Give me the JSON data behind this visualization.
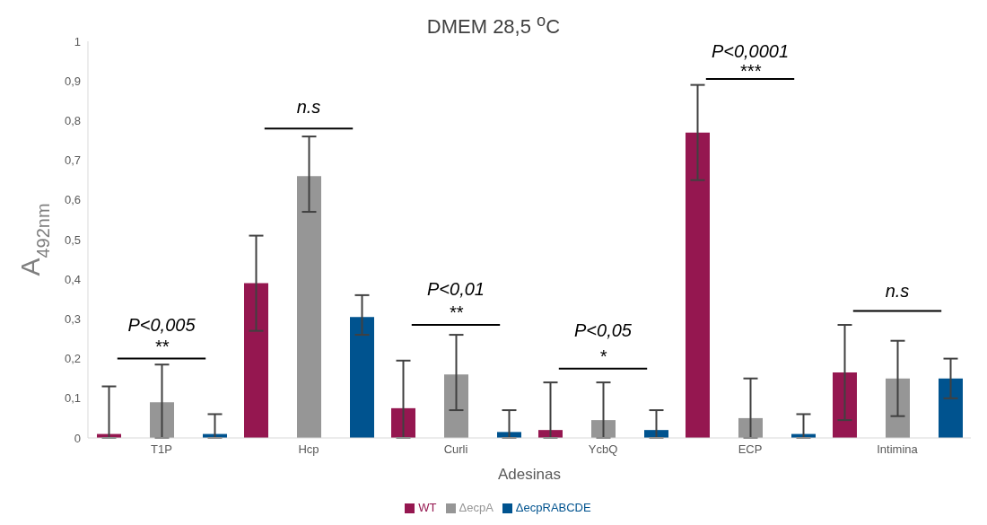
{
  "chart_data": {
    "type": "bar",
    "title": "DMEM 28,5 $^{o}$C",
    "xlabel": "Adesinas",
    "ylabel": "A$_{492nm}$",
    "categories": [
      "T1P",
      "Hcp",
      "Curli",
      "YcbQ",
      "ECP",
      "Intimina"
    ],
    "series": [
      {
        "name": "WT",
        "color": "#951750",
        "values": [
          0.01,
          0.39,
          0.075,
          0.02,
          0.77,
          0.165
        ],
        "errors": [
          [
            0,
            0.13
          ],
          [
            0.27,
            0.51
          ],
          [
            0,
            0.195
          ],
          [
            0,
            0.14
          ],
          [
            0.65,
            0.89
          ],
          [
            0.045,
            0.285
          ]
        ]
      },
      {
        "name": "ΔecpA",
        "color": "#969696",
        "values": [
          0.09,
          0.66,
          0.16,
          0.045,
          0.05,
          0.15
        ],
        "errors": [
          [
            0,
            0.185
          ],
          [
            0.57,
            0.76
          ],
          [
            0.07,
            0.26
          ],
          [
            0,
            0.14
          ],
          [
            0,
            0.15
          ],
          [
            0.055,
            0.245
          ]
        ]
      },
      {
        "name": "ΔecpRABCDE",
        "color": "#00538f",
        "values": [
          0.01,
          0.305,
          0.015,
          0.02,
          0.01,
          0.15
        ],
        "errors": [
          [
            0,
            0.06
          ],
          [
            0.26,
            0.36
          ],
          [
            0,
            0.07
          ],
          [
            0,
            0.07
          ],
          [
            0,
            0.06
          ],
          [
            0.1,
            0.2
          ]
        ]
      }
    ],
    "ylim": [
      0,
      1
    ],
    "yticks": [
      0,
      {
        "value": 0.1,
        "label": "0,1"
      },
      {
        "value": 0.2,
        "label": "0,2"
      },
      {
        "value": 0.3,
        "label": "0,3"
      },
      {
        "value": 0.4,
        "label": "0,4"
      },
      {
        "value": 0.5,
        "label": "0,5"
      },
      {
        "value": 0.6,
        "label": "0,6"
      },
      {
        "value": 0.7,
        "label": "0,7"
      },
      {
        "value": 0.8,
        "label": "0,8"
      },
      {
        "value": 0.9,
        "label": "0,9"
      },
      1
    ],
    "grid": false,
    "legend": "bottom",
    "annotations": [
      "P<0,005",
      "**",
      "n.s",
      "P<0,01",
      "**",
      "P<0,05",
      "*",
      "P<0,0001",
      "***",
      "n.s"
    ]
  }
}
